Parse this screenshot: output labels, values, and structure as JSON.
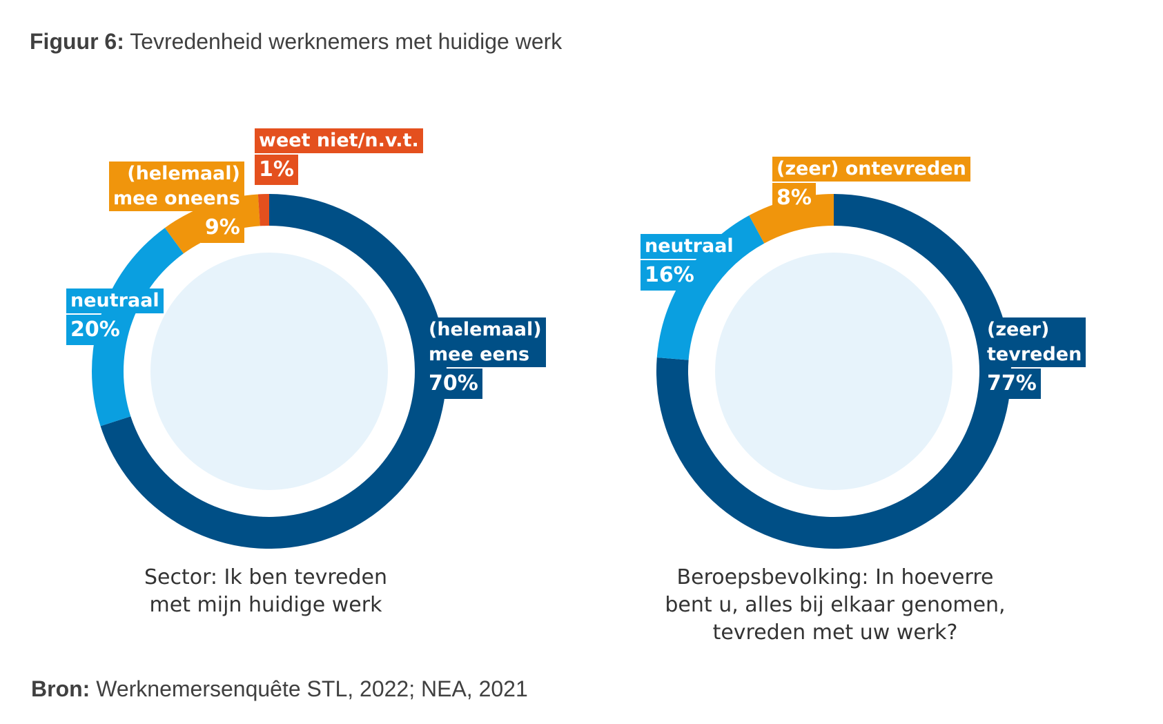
{
  "header": {
    "title_lead": "Figuur 6:",
    "title_rest": " Tevredenheid werknemers met huidige werk"
  },
  "footer": {
    "source_lead": "Bron:",
    "source_rest": " Werknemersenquête STL, 2022; NEA, 2021"
  },
  "colors": {
    "dark_blue": "#004f86",
    "light_blue": "#0a9fe0",
    "orange": "#f0950c",
    "red_orange": "#e4501e",
    "center_fill": "#e7f3fb"
  },
  "chart_data": [
    {
      "type": "pie",
      "subtype": "donut",
      "caption": [
        "Sector: Ik ben tevreden",
        "met mijn huidige werk"
      ],
      "slices": [
        {
          "label": [
            "(helemaal)",
            "mee eens"
          ],
          "value": 70,
          "value_label": "70%",
          "color": "#004f86"
        },
        {
          "label": [
            "neutraal"
          ],
          "value": 20,
          "value_label": "20%",
          "color": "#0a9fe0"
        },
        {
          "label": [
            "(helemaal)",
            "mee oneens"
          ],
          "value": 9,
          "value_label": "9%",
          "color": "#f0950c"
        },
        {
          "label": [
            "weet niet/n.v.t."
          ],
          "value": 1,
          "value_label": "1%",
          "color": "#e4501e"
        }
      ]
    },
    {
      "type": "pie",
      "subtype": "donut",
      "caption": [
        "Beroepsbevolking: In hoeverre",
        "bent u, alles bij elkaar genomen,",
        "tevreden met uw werk?"
      ],
      "slices": [
        {
          "label": [
            "(zeer)",
            "tevreden"
          ],
          "value": 77,
          "value_label": "77%",
          "color": "#004f86"
        },
        {
          "label": [
            "neutraal"
          ],
          "value": 16,
          "value_label": "16%",
          "color": "#0a9fe0"
        },
        {
          "label": [
            "(zeer) ontevreden"
          ],
          "value": 8,
          "value_label": "8%",
          "color": "#f0950c"
        }
      ]
    }
  ]
}
